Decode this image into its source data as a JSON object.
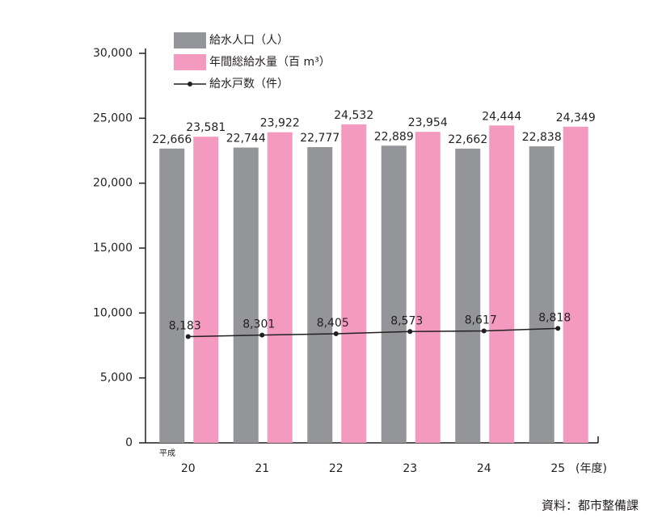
{
  "chart_data": {
    "type": "bar",
    "x_prefix": "平成",
    "x_unit": "(年度)",
    "source": "資料：都市整備課",
    "categories": [
      "20",
      "21",
      "22",
      "23",
      "24",
      "25"
    ],
    "series": [
      {
        "name": "給水人口（人）",
        "color": "#939598",
        "type": "bar",
        "values": [
          22666,
          22744,
          22777,
          22889,
          22662,
          22838
        ],
        "value_labels": [
          "22,666",
          "22,744",
          "22,777",
          "22,889",
          "22,662",
          "22,838"
        ]
      },
      {
        "name": "年間総給水量（百 m³）",
        "color": "#f49ac1",
        "type": "bar",
        "values": [
          23581,
          23922,
          24532,
          23954,
          24444,
          24349
        ],
        "value_labels": [
          "23,581",
          "23,922",
          "24,532",
          "23,954",
          "24,444",
          "24,349"
        ]
      },
      {
        "name": "給水戸数（件）",
        "color": "#231f20",
        "type": "line",
        "values": [
          8183,
          8301,
          8405,
          8573,
          8617,
          8818
        ],
        "value_labels": [
          "8,183",
          "8,301",
          "8,405",
          "8,573",
          "8,617",
          "8,818"
        ]
      }
    ],
    "ylim": [
      0,
      30000
    ],
    "yticks": [
      0,
      {
        "value": 5000,
        "label": "5,000"
      },
      {
        "value": 10000,
        "label": "10,000"
      },
      {
        "value": 15000,
        "label": "15,000"
      },
      {
        "value": 20000,
        "label": "20,000"
      },
      {
        "value": 25000,
        "label": "25,000"
      },
      {
        "value": 30000,
        "label": "30,000"
      }
    ],
    "legend": "top"
  }
}
